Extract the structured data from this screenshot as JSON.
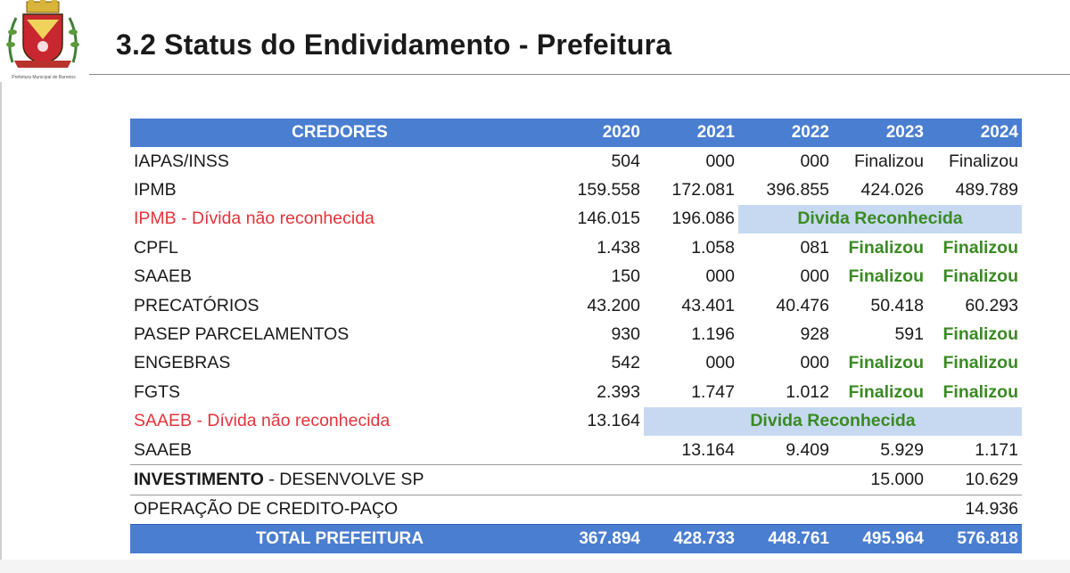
{
  "header": {
    "title": "3.2 Status do Endividamento - Prefeitura",
    "crest_caption": "Prefeitura Municipal de Barretos"
  },
  "table": {
    "columns": [
      "CREDORES",
      "2020",
      "2021",
      "2022",
      "2023",
      "2024"
    ],
    "rows": [
      {
        "name": "IAPAS/INSS",
        "values": [
          "504",
          "000",
          "000",
          "Finalizou",
          "Finalizou"
        ]
      },
      {
        "name": "IPMB",
        "values": [
          "159.558",
          "172.081",
          "396.855",
          "424.026",
          "489.789"
        ]
      },
      {
        "name": "IPMB - Dívida não reconhecida",
        "values": [
          "146.015",
          "196.086"
        ],
        "band": "Divida Reconhecida"
      },
      {
        "name": "CPFL",
        "values": [
          "1.438",
          "1.058",
          "081",
          "Finalizou",
          "Finalizou"
        ]
      },
      {
        "name": "SAAEB",
        "values": [
          "150",
          "000",
          "000",
          "Finalizou",
          "Finalizou"
        ]
      },
      {
        "name": "PRECATÓRIOS",
        "values": [
          "43.200",
          "43.401",
          "40.476",
          "50.418",
          "60.293"
        ]
      },
      {
        "name": "PASEP PARCELAMENTOS",
        "values": [
          "930",
          "1.196",
          "928",
          "591",
          "Finalizou"
        ]
      },
      {
        "name": "ENGEBRAS",
        "values": [
          "542",
          "000",
          "000",
          "Finalizou",
          "Finalizou"
        ]
      },
      {
        "name": "FGTS",
        "values": [
          "2.393",
          "1.747",
          "1.012",
          "Finalizou",
          "Finalizou"
        ]
      },
      {
        "name": "SAAEB - Dívida não reconhecida",
        "values": [
          "13.164"
        ],
        "band": "Divida Reconhecida"
      },
      {
        "name": "SAAEB",
        "values": [
          "",
          "13.164",
          "9.409",
          "5.929",
          "1.171"
        ]
      },
      {
        "name_bold": "INVESTIMENTO",
        "name_rest": " - DESENVOLVE SP",
        "values": [
          "",
          "",
          "",
          "15.000",
          "10.629"
        ]
      },
      {
        "name": "OPERAÇÃO DE CREDITO-PAÇO",
        "values": [
          "",
          "",
          "",
          "",
          "14.936"
        ]
      }
    ],
    "total": {
      "name": "TOTAL PREFEITURA",
      "values": [
        "367.894",
        "428.733",
        "448.761",
        "495.964",
        "576.818"
      ]
    }
  },
  "colors": {
    "header_blue": "#4a7ed0",
    "band_blue": "#c7d9f1",
    "red_text": "#e3333b",
    "green_text": "#3a8a23"
  }
}
